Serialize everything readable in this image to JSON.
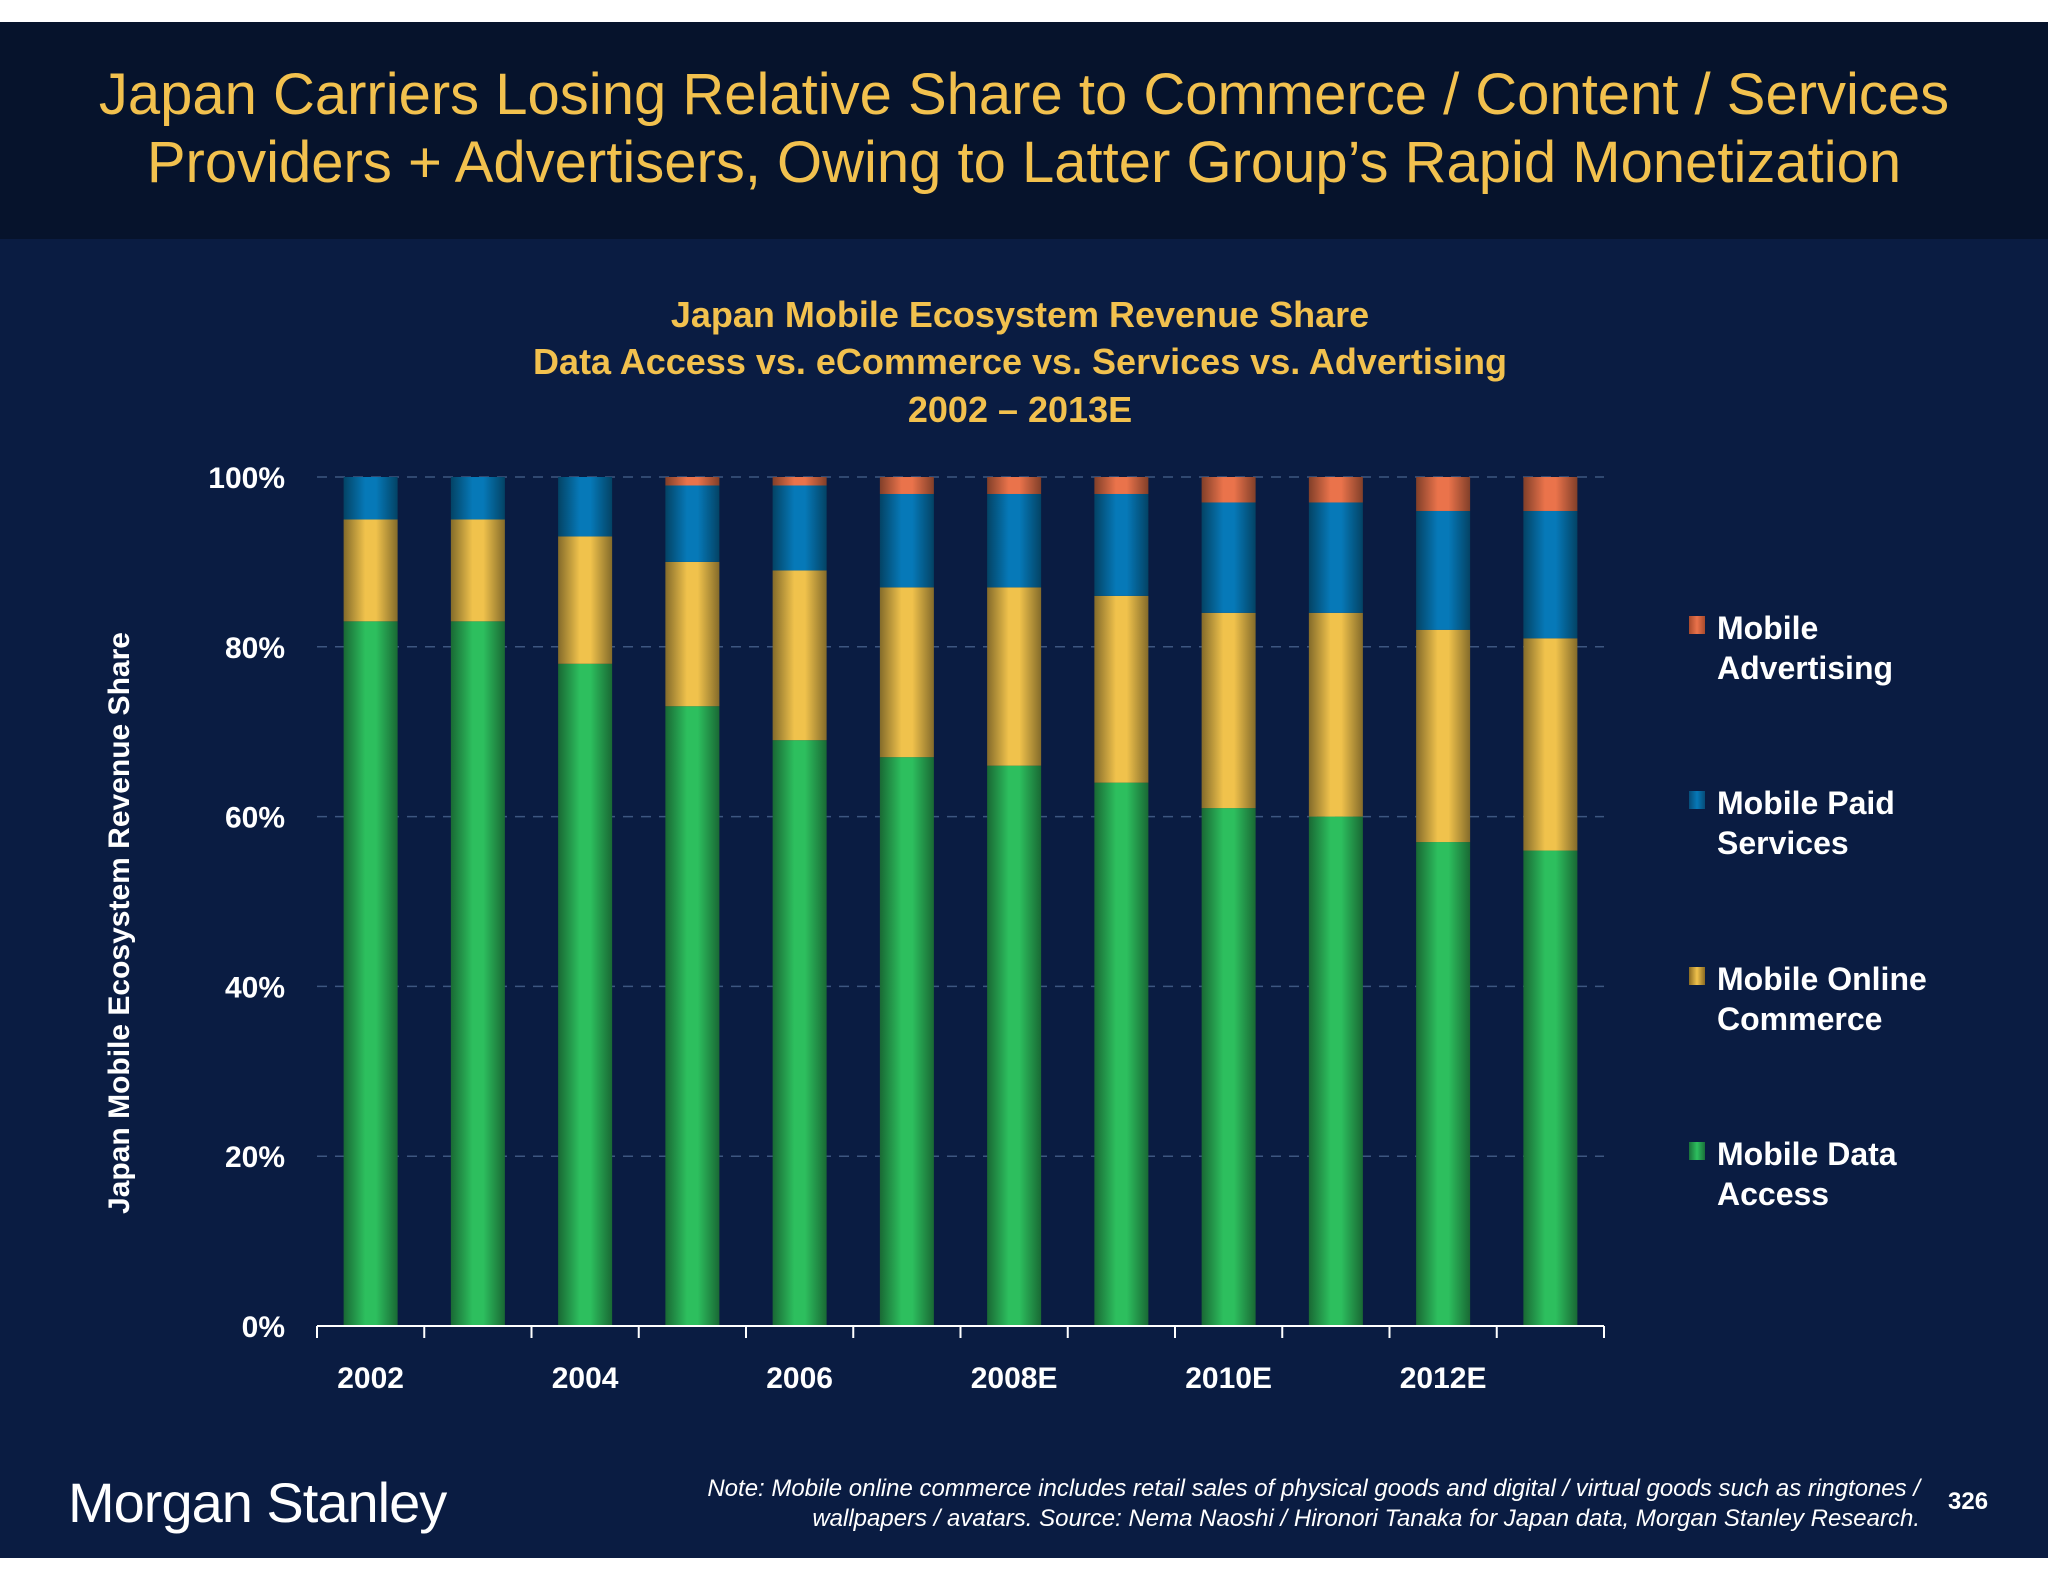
{
  "header": {
    "title_line1": "Japan Carriers Losing Relative Share to Commerce / Content / Services",
    "title_line2": "Providers + Advertisers, Owing to Latter Group’s Rapid Monetization"
  },
  "chart_data": {
    "type": "bar",
    "stacked": true,
    "title_lines": [
      "Japan Mobile Ecosystem Revenue Share",
      "Data Access vs. eCommerce vs. Services vs. Advertising",
      "2002 – 2013E"
    ],
    "xlabel": "",
    "ylabel": "Japan Mobile Ecosystem Revenue Share",
    "x": [
      2002,
      2003,
      2004,
      2005,
      2006,
      2007,
      2008,
      2009,
      2010,
      2011,
      2012,
      2013
    ],
    "x_tick_labels": [
      "2002",
      "2004",
      "2006",
      "2008E",
      "2010E",
      "2012E"
    ],
    "y_tick_labels": [
      "0%",
      "20%",
      "40%",
      "60%",
      "80%",
      "100%"
    ],
    "ylim": [
      0,
      100
    ],
    "grid": "horizontal dashed",
    "legend_position": "right",
    "series": [
      {
        "name": "Mobile Data Access",
        "color": "#2dbf5e",
        "values": [
          83,
          83,
          78,
          73,
          69,
          67,
          66,
          64,
          61,
          60,
          57,
          56
        ]
      },
      {
        "name": "Mobile Online Commerce",
        "color": "#f0c24c",
        "values": [
          12,
          12,
          15,
          17,
          20,
          20,
          21,
          22,
          23,
          24,
          25,
          25
        ]
      },
      {
        "name": "Mobile Paid Services",
        "color": "#0679b8",
        "values": [
          5,
          5,
          7,
          9,
          10,
          11,
          11,
          12,
          13,
          13,
          14,
          15
        ]
      },
      {
        "name": "Mobile Advertising",
        "color": "#ea734b",
        "values": [
          0,
          0,
          0,
          1,
          1,
          2,
          2,
          2,
          3,
          3,
          4,
          4
        ]
      }
    ],
    "legend": [
      {
        "line1": "Mobile",
        "line2": "Advertising"
      },
      {
        "line1": "Mobile Paid",
        "line2": "Services"
      },
      {
        "line1": "Mobile Online",
        "line2": "Commerce"
      },
      {
        "line1": "Mobile Data",
        "line2": "Access"
      }
    ]
  },
  "footer": {
    "logo": "Morgan Stanley",
    "note_line1": "Note: Mobile online commerce includes retail sales of physical goods and digital / virtual goods such as ringtones /",
    "note_line2": "wallpapers / avatars. Source: Nema Naoshi / Hironori Tanaka for Japan data, Morgan Stanley Research.",
    "page_number": "326"
  }
}
